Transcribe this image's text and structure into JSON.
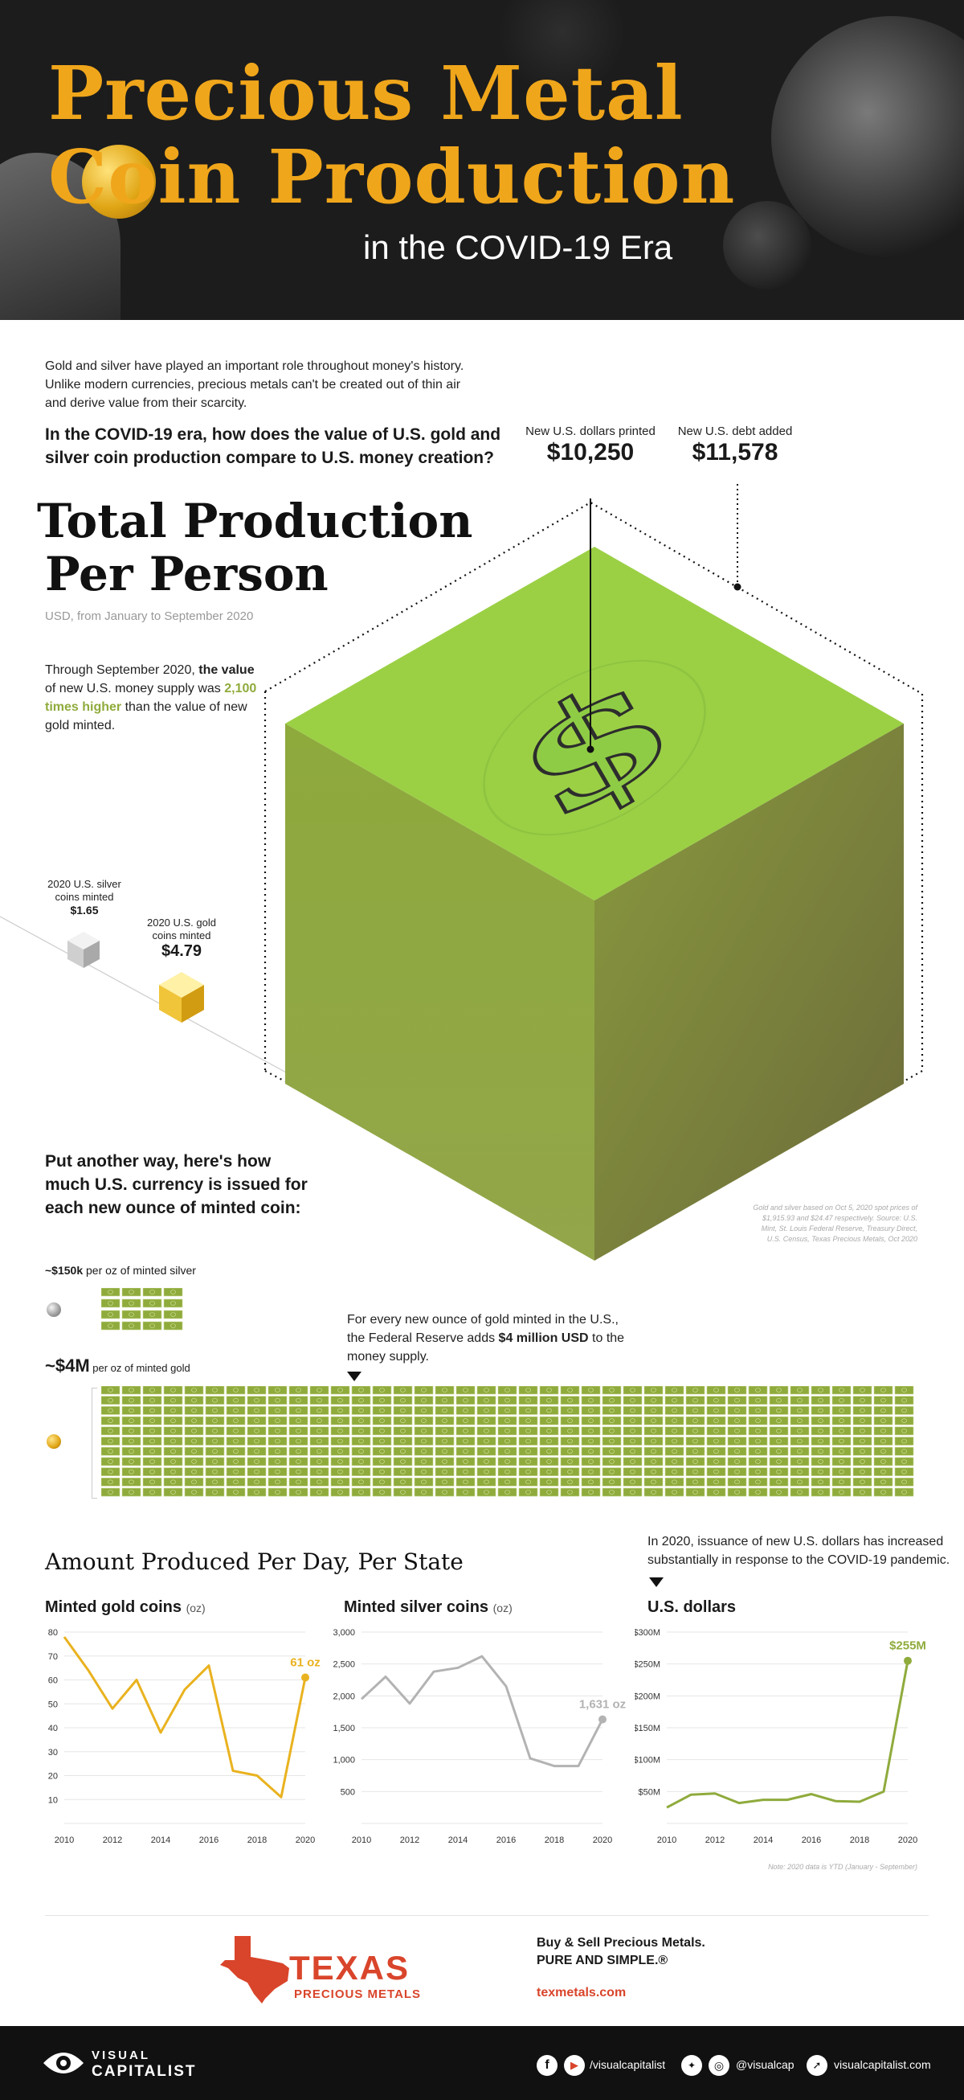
{
  "header": {
    "title_line1": "Precious Metal",
    "title_line2": "Coin Production",
    "subtitle": "in the COVID-19 Era"
  },
  "intro": {
    "text": "Gold and silver have played an important role throughout money's history. Unlike modern currencies, precious metals can't be created out of thin air and derive value from their scarcity.",
    "question": "In the COVID-19 era, how does the value of U.S. gold and silver coin production compare to U.S. money creation?"
  },
  "total": {
    "title_line1": "Total Production",
    "title_line2": "Per Person",
    "units": "USD, from January to September 2020",
    "desc_pre": "Through September 2020, ",
    "desc_bold": "the value",
    "desc_mid": " of new U.S. money supply was ",
    "desc_green": "2,100 times higher",
    "desc_post": " than the value of new gold minted.",
    "printed_label": "New U.S. dollars printed",
    "printed_value": "$10,250",
    "debt_label": "New U.S. debt added",
    "debt_value": "$11,578",
    "silver_label": "2020 U.S. silver coins minted",
    "silver_value": "$1.65",
    "gold_label": "2020 U.S. gold coins minted",
    "gold_value": "$4.79",
    "source_note": "Gold and silver based on Oct 5, 2020 spot prices of $1,915.93 and $24.47 respectively. Source: U.S. Mint, St. Louis Federal Reserve, Treasury Direct, U.S. Census, Texas Precious Metals, Oct 2020"
  },
  "currency": {
    "question": "Put another way, here's how much U.S. currency is issued for each new ounce of minted coin:",
    "silver_value": "~$150k",
    "silver_label": "per oz of minted silver",
    "gold_value": "~$4M",
    "gold_label": "per oz of minted gold",
    "gold_note_pre": "For every new ounce of gold minted in the U.S., the Federal Reserve adds ",
    "gold_note_bold": "$4 million USD",
    "gold_note_post": " to the money supply."
  },
  "daily": {
    "title": "Amount Produced Per Day, Per State",
    "usd_intro": "In 2020, issuance of new U.S. dollars has increased substantially in response to the COVID-19 pandemic.",
    "note": "Note: 2020 data is YTD (January - September)"
  },
  "chart_data": [
    {
      "type": "line",
      "title": "Minted gold coins",
      "unit": "(oz)",
      "x": [
        2010,
        2011,
        2012,
        2013,
        2014,
        2015,
        2016,
        2017,
        2018,
        2019,
        2020
      ],
      "values": [
        78,
        64,
        48,
        60,
        38,
        56,
        66,
        22,
        20,
        11,
        61
      ],
      "ylim": [
        0,
        80
      ],
      "yticks": [
        "10",
        "20",
        "30",
        "40",
        "50",
        "60",
        "70",
        "80"
      ],
      "xticks": [
        "2010",
        "2012",
        "2014",
        "2016",
        "2018",
        "2020"
      ],
      "end_label": "61 oz",
      "color": "#e9b21f"
    },
    {
      "type": "line",
      "title": "Minted silver coins",
      "unit": "(oz)",
      "x": [
        2010,
        2011,
        2012,
        2013,
        2014,
        2015,
        2016,
        2017,
        2018,
        2019,
        2020
      ],
      "values": [
        1950,
        2300,
        1880,
        2380,
        2440,
        2620,
        2150,
        1020,
        900,
        900,
        1631
      ],
      "ylim": [
        0,
        3000
      ],
      "yticks": [
        "500",
        "1,000",
        "1,500",
        "2,000",
        "2,500",
        "3,000"
      ],
      "xticks": [
        "2010",
        "2012",
        "2014",
        "2016",
        "2018",
        "2020"
      ],
      "end_label": "1,631 oz",
      "color": "#b3b3b3"
    },
    {
      "type": "line",
      "title": "U.S. dollars",
      "unit": "",
      "x": [
        2010,
        2011,
        2012,
        2013,
        2014,
        2015,
        2016,
        2017,
        2018,
        2019,
        2020
      ],
      "values": [
        25,
        45,
        47,
        32,
        37,
        37,
        46,
        35,
        34,
        50,
        255
      ],
      "ylim": [
        0,
        300
      ],
      "yticks": [
        "$50M",
        "$100M",
        "$150M",
        "$200M",
        "$250M",
        "$300M"
      ],
      "xticks": [
        "2010",
        "2012",
        "2014",
        "2016",
        "2018",
        "2020"
      ],
      "end_label": "$255M",
      "color": "#8fab3c"
    }
  ],
  "sponsor": {
    "logo_word": "TEXAS",
    "logo_sub": "PRECIOUS METALS",
    "tagline1": "Buy & Sell Precious Metals.",
    "tagline2": "PURE AND SIMPLE.®",
    "url": "texmetals.com"
  },
  "footer": {
    "brand_top": "VISUAL",
    "brand_bottom": "CAPITALIST",
    "handle1": "/visualcapitalist",
    "handle2": "@visualcap",
    "site": "visualcapitalist.com"
  }
}
